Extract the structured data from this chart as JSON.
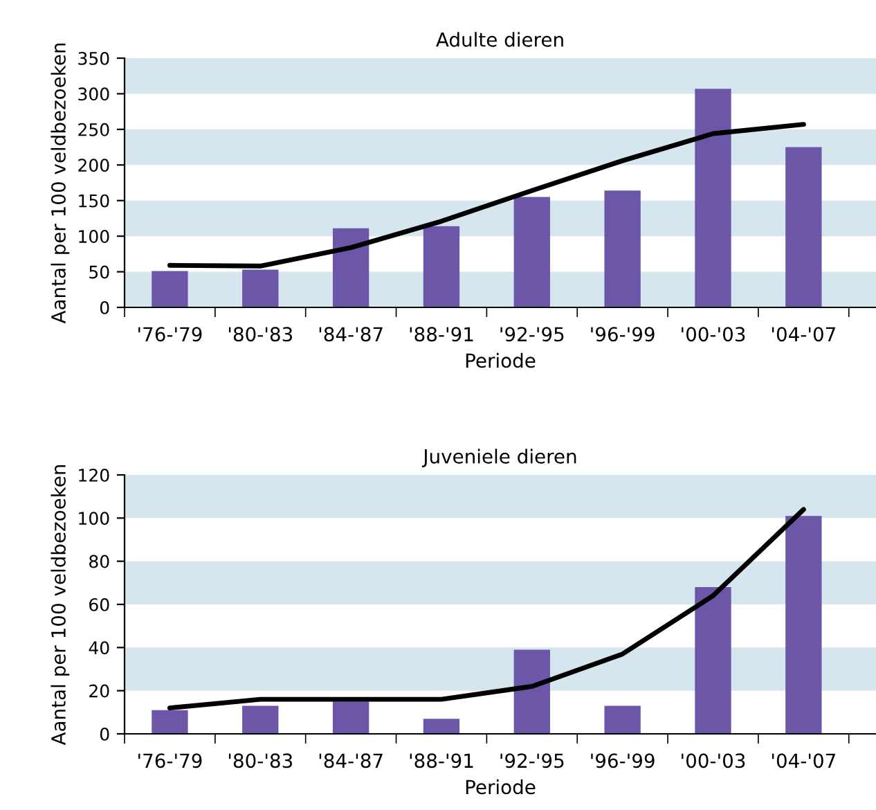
{
  "chart_data": [
    {
      "type": "bar",
      "title": "Adulte dieren",
      "xlabel": "Periode",
      "ylabel": "Aantal per 100 veldbezoeken",
      "categories": [
        "'76-'79",
        "'80-'83",
        "'84-'87",
        "'88-'91",
        "'92-'95",
        "'96-'99",
        "'00-'03",
        "'04-'07"
      ],
      "series": [
        {
          "color": "#6b56a8",
          "values": [
            51,
            53,
            111,
            114,
            155,
            164,
            307,
            225
          ]
        },
        {
          "type": "line",
          "color": "#000000",
          "values": [
            59,
            58,
            84,
            121,
            164,
            206,
            244,
            257
          ]
        }
      ],
      "ylim": [
        0,
        350
      ],
      "yticks": [
        0,
        50,
        100,
        150,
        200,
        250,
        300,
        350
      ],
      "grid": false,
      "legend": false,
      "marker": "none",
      "bands": [
        {
          "axis": "y",
          "from": 0,
          "to": 50,
          "color": "#d6e6ee"
        },
        {
          "axis": "y",
          "from": 100,
          "to": 150,
          "color": "#d6e6ee"
        },
        {
          "axis": "y",
          "from": 200,
          "to": 250,
          "color": "#d6e6ee"
        },
        {
          "axis": "y",
          "from": 300,
          "to": 350,
          "color": "#d6e6ee"
        }
      ]
    },
    {
      "type": "bar",
      "title": "Juveniele dieren",
      "xlabel": "Periode",
      "ylabel": "Aantal per 100 veldbezoeken",
      "categories": [
        "'76-'79",
        "'80-'83",
        "'84-'87",
        "'88-'91",
        "'92-'95",
        "'96-'99",
        "'00-'03",
        "'04-'07"
      ],
      "series": [
        {
          "color": "#6b56a8",
          "values": [
            11,
            13,
            15,
            7,
            39,
            13,
            68,
            101
          ]
        },
        {
          "type": "line",
          "color": "#000000",
          "values": [
            12,
            16,
            16,
            16,
            22,
            37,
            64,
            104
          ]
        }
      ],
      "ylim": [
        0,
        120
      ],
      "yticks": [
        0,
        20,
        40,
        60,
        80,
        100,
        120
      ],
      "grid": false,
      "legend": false,
      "marker": "none",
      "bands": [
        {
          "axis": "y",
          "from": 20,
          "to": 40,
          "color": "#d6e6ee"
        },
        {
          "axis": "y",
          "from": 60,
          "to": 80,
          "color": "#d6e6ee"
        },
        {
          "axis": "y",
          "from": 100,
          "to": 120,
          "color": "#d6e6ee"
        }
      ]
    }
  ]
}
